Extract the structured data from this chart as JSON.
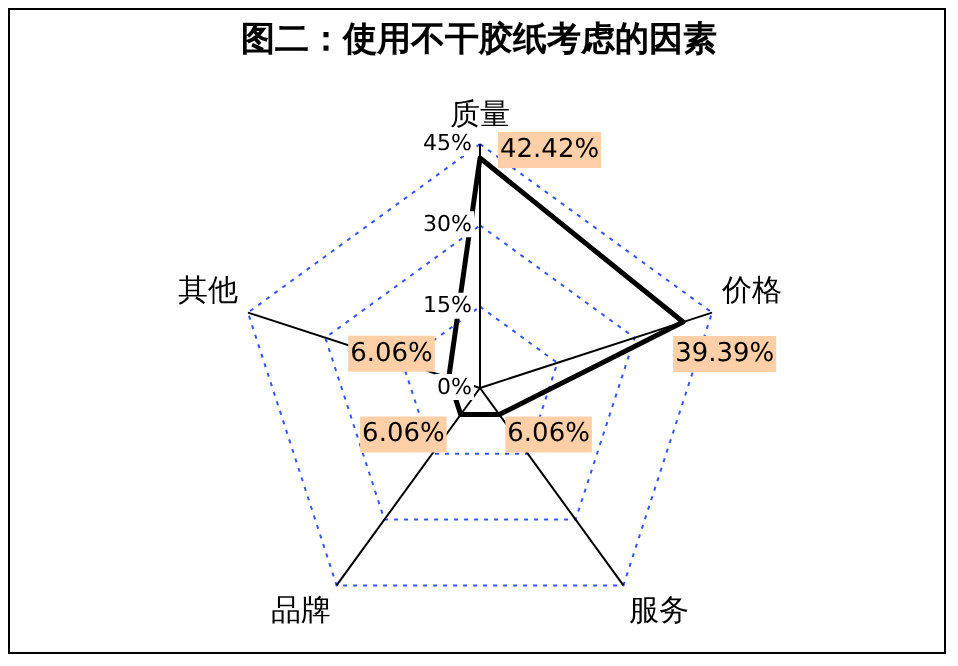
{
  "chart_data": {
    "type": "radar",
    "title": "图二：使用不干胶纸考虑的因素",
    "categories": [
      "质量",
      "价格",
      "服务",
      "品牌",
      "其他"
    ],
    "series": [
      {
        "color": "#000000",
        "values": [
          42.42,
          39.39,
          6.06,
          6.06,
          6.06
        ],
        "value_labels": [
          "42.42%",
          "39.39%",
          "6.06%",
          "6.06%",
          "6.06%"
        ]
      }
    ],
    "ylim": [
      0,
      45
    ],
    "yticks": [
      {
        "value": 0,
        "label": "0%"
      },
      {
        "value": 15,
        "label": "15%"
      },
      {
        "value": 30,
        "label": "30%"
      },
      {
        "value": 45,
        "label": "45%"
      }
    ],
    "grid": true,
    "marker": "none",
    "line_style": "solid",
    "legend": false
  }
}
